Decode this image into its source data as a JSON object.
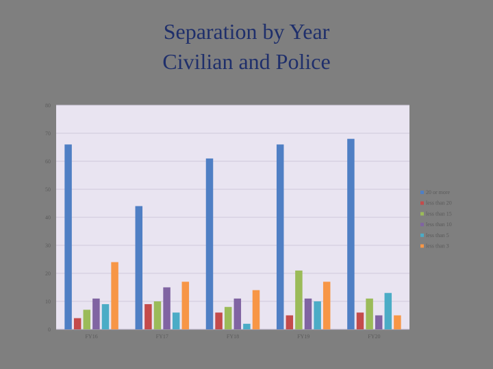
{
  "slide": {
    "title_line1": "Separation by Year",
    "title_line2": "Civilian and Police"
  },
  "chart_data": {
    "type": "bar",
    "title": "",
    "xlabel": "",
    "ylabel": "",
    "ylim": [
      0,
      80
    ],
    "yticks": [
      0,
      10,
      20,
      30,
      40,
      50,
      60,
      70,
      80
    ],
    "grid": true,
    "legend": "right",
    "categories": [
      "FY16",
      "FY17",
      "FY18",
      "FY19",
      "FY20"
    ],
    "series": [
      {
        "name": "20 or more",
        "color": "#4f7fc4",
        "values": [
          66,
          44,
          61,
          66,
          68
        ]
      },
      {
        "name": "less than 20",
        "color": "#c44b4b",
        "values": [
          4,
          9,
          6,
          5,
          6
        ]
      },
      {
        "name": "less than 15",
        "color": "#9bbb59",
        "values": [
          7,
          10,
          8,
          21,
          11
        ]
      },
      {
        "name": "less than 10",
        "color": "#8064a2",
        "values": [
          11,
          15,
          11,
          11,
          5
        ]
      },
      {
        "name": "less than 5",
        "color": "#4bacc6",
        "values": [
          9,
          6,
          2,
          10,
          13
        ]
      },
      {
        "name": "less than 3",
        "color": "#f79646",
        "values": [
          24,
          17,
          14,
          17,
          5
        ]
      }
    ]
  }
}
